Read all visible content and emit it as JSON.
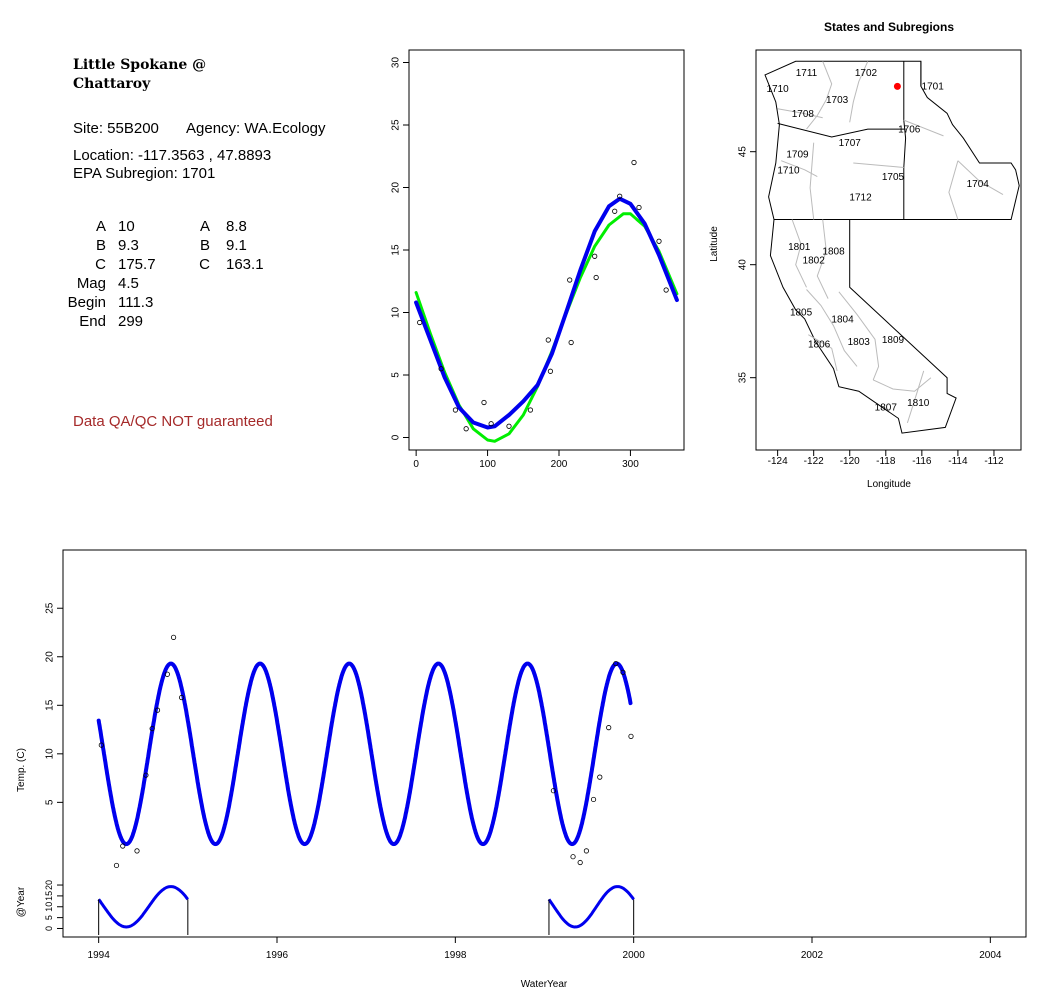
{
  "info": {
    "site_title": "Little Spokane @\nChattaroy",
    "site_label": "Site: 55B200",
    "agency_label": "Agency: WA.Ecology",
    "location_label": "Location: -117.3563 , 47.8893",
    "subregion_label": "EPA Subregion: 1701",
    "params_left": [
      {
        "name": "A",
        "value": "10"
      },
      {
        "name": "B",
        "value": "9.3"
      },
      {
        "name": "C",
        "value": "175.7"
      },
      {
        "name": "Mag",
        "value": "4.5"
      },
      {
        "name": "Begin",
        "value": "111.3"
      },
      {
        "name": "End",
        "value": "299"
      }
    ],
    "params_right": [
      {
        "name": "A",
        "value": "8.8"
      },
      {
        "name": "B",
        "value": "9.1"
      },
      {
        "name": "C",
        "value": "163.1"
      }
    ],
    "qa_note": "Data QA/QC NOT guaranteed"
  },
  "colors": {
    "blue_series": "#0000ee",
    "green_series": "#00ee00",
    "qa_note": "#a52a2a",
    "site_point": "#ff0000",
    "region_border": "#bbbbbb"
  },
  "chart_data": [
    {
      "type": "scatter",
      "title": "",
      "xlabel": "",
      "ylabel": "",
      "xlim": [
        -10,
        375
      ],
      "ylim": [
        -1,
        31
      ],
      "xticks": [
        0,
        100,
        200,
        300
      ],
      "yticks": [
        0,
        5,
        10,
        15,
        20,
        25,
        30
      ],
      "points": [
        [
          5,
          9.2
        ],
        [
          35,
          5.5
        ],
        [
          55,
          2.2
        ],
        [
          70,
          0.7
        ],
        [
          95,
          2.8
        ],
        [
          105,
          1.1
        ],
        [
          130,
          0.9
        ],
        [
          160,
          2.2
        ],
        [
          185,
          7.8
        ],
        [
          188,
          5.3
        ],
        [
          215,
          12.6
        ],
        [
          217,
          7.6
        ],
        [
          250,
          14.5
        ],
        [
          252,
          12.8
        ],
        [
          278,
          18.1
        ],
        [
          285,
          19.3
        ],
        [
          305,
          22
        ],
        [
          312,
          18.4
        ],
        [
          340,
          15.7
        ],
        [
          350,
          11.8
        ]
      ],
      "series": [
        {
          "style": "green",
          "values": [
            [
              0,
              11.6
            ],
            [
              20,
              8.3
            ],
            [
              40,
              5.2
            ],
            [
              60,
              2.6
            ],
            [
              80,
              0.7
            ],
            [
              100,
              -0.2
            ],
            [
              110,
              -0.3
            ],
            [
              130,
              0.3
            ],
            [
              150,
              1.8
            ],
            [
              170,
              4.1
            ],
            [
              190,
              6.9
            ],
            [
              210,
              9.9
            ],
            [
              230,
              12.8
            ],
            [
              250,
              15.3
            ],
            [
              270,
              17.0
            ],
            [
              290,
              17.9
            ],
            [
              300,
              17.9
            ],
            [
              320,
              16.9
            ],
            [
              340,
              14.9
            ],
            [
              365,
              11.5
            ]
          ]
        },
        {
          "style": "blue",
          "values": [
            [
              0,
              10.8
            ],
            [
              20,
              7.8
            ],
            [
              40,
              4.8
            ],
            [
              60,
              2.4
            ],
            [
              80,
              1.2
            ],
            [
              100,
              0.8
            ],
            [
              110,
              0.9
            ],
            [
              130,
              1.8
            ],
            [
              150,
              2.9
            ],
            [
              170,
              4.2
            ],
            [
              190,
              6.7
            ],
            [
              210,
              10.0
            ],
            [
              230,
              13.4
            ],
            [
              250,
              16.5
            ],
            [
              270,
              18.5
            ],
            [
              285,
              19.1
            ],
            [
              300,
              18.7
            ],
            [
              320,
              17.1
            ],
            [
              340,
              14.6
            ],
            [
              365,
              11.0
            ]
          ]
        }
      ]
    },
    {
      "type": "map",
      "title": "States and Subregions",
      "xlabel": "Longitude",
      "ylabel": "Latitude",
      "xlim": [
        -125.2,
        -110.5
      ],
      "ylim": [
        31.8,
        49.5
      ],
      "xticks": [
        -124,
        -122,
        -120,
        -118,
        -116,
        -114,
        -112
      ],
      "yticks": [
        35,
        40,
        45
      ],
      "site_point": [
        -117.3563,
        47.8893
      ],
      "region_labels": [
        {
          "label": "1711",
          "lon": -122.4,
          "lat": 48.5
        },
        {
          "label": "1702",
          "lon": -119.1,
          "lat": 48.5
        },
        {
          "label": "1701",
          "lon": -115.4,
          "lat": 47.9
        },
        {
          "label": "1710",
          "lon": -124.0,
          "lat": 47.8
        },
        {
          "label": "1703",
          "lon": -120.7,
          "lat": 47.3
        },
        {
          "label": "1708",
          "lon": -122.6,
          "lat": 46.7
        },
        {
          "label": "1706",
          "lon": -116.7,
          "lat": 46.0
        },
        {
          "label": "1707",
          "lon": -120.0,
          "lat": 45.4
        },
        {
          "label": "1709",
          "lon": -122.9,
          "lat": 44.9
        },
        {
          "label": "1710",
          "lon": -123.4,
          "lat": 44.2
        },
        {
          "label": "1705",
          "lon": -117.6,
          "lat": 43.9
        },
        {
          "label": "1704",
          "lon": -112.9,
          "lat": 43.6
        },
        {
          "label": "1712",
          "lon": -119.4,
          "lat": 43.0
        },
        {
          "label": "1801",
          "lon": -122.8,
          "lat": 40.8
        },
        {
          "label": "1808",
          "lon": -120.9,
          "lat": 40.6
        },
        {
          "label": "1802",
          "lon": -122.0,
          "lat": 40.2
        },
        {
          "label": "1805",
          "lon": -122.7,
          "lat": 37.9
        },
        {
          "label": "1804",
          "lon": -120.4,
          "lat": 37.6
        },
        {
          "label": "1806",
          "lon": -121.7,
          "lat": 36.5
        },
        {
          "label": "1803",
          "lon": -119.5,
          "lat": 36.6
        },
        {
          "label": "1809",
          "lon": -117.6,
          "lat": 36.7
        },
        {
          "label": "1810",
          "lon": -116.2,
          "lat": 33.9
        },
        {
          "label": "1807",
          "lon": -118.0,
          "lat": 33.7
        }
      ]
    },
    {
      "type": "line",
      "title": "",
      "xlabel": "WaterYear",
      "ylabel": "Temp. (C)",
      "xlim": [
        1993.6,
        2004.4
      ],
      "ylim": [
        -3,
        31
      ],
      "xticks": [
        1994,
        1996,
        1998,
        2000,
        2002,
        2004
      ],
      "yticks": [
        5,
        10,
        15,
        20,
        25
      ],
      "series": [
        {
          "name": "",
          "style": "blue",
          "start": 1994.0,
          "end": 1999.97,
          "mean": 10,
          "amplitude": 9.3,
          "peak_fraction": 0.81
        }
      ],
      "points": [
        [
          1994.03,
          10.9
        ],
        [
          1994.2,
          -1.5
        ],
        [
          1994.27,
          0.5
        ],
        [
          1994.43,
          0.0
        ],
        [
          1994.53,
          7.8
        ],
        [
          1994.6,
          12.6
        ],
        [
          1994.66,
          14.5
        ],
        [
          1994.77,
          18.2
        ],
        [
          1994.84,
          22.0
        ],
        [
          1994.93,
          15.8
        ],
        [
          1999.1,
          6.2
        ],
        [
          1999.32,
          -0.6
        ],
        [
          1999.4,
          -1.2
        ],
        [
          1999.47,
          0.0
        ],
        [
          1999.55,
          5.3
        ],
        [
          1999.62,
          7.6
        ],
        [
          1999.72,
          12.7
        ],
        [
          1999.8,
          19.3
        ],
        [
          1999.88,
          18.4
        ],
        [
          1999.97,
          11.8
        ]
      ]
    },
    {
      "type": "line",
      "title": "",
      "xlabel": "",
      "ylabel": "@Year",
      "ylim": [
        -3,
        26
      ],
      "yticks": [
        0,
        5,
        10,
        15,
        20
      ],
      "segments": [
        {
          "start": 1994.0,
          "end": 1995.0
        },
        {
          "start": 1999.05,
          "end": 2000.0
        }
      ]
    }
  ]
}
